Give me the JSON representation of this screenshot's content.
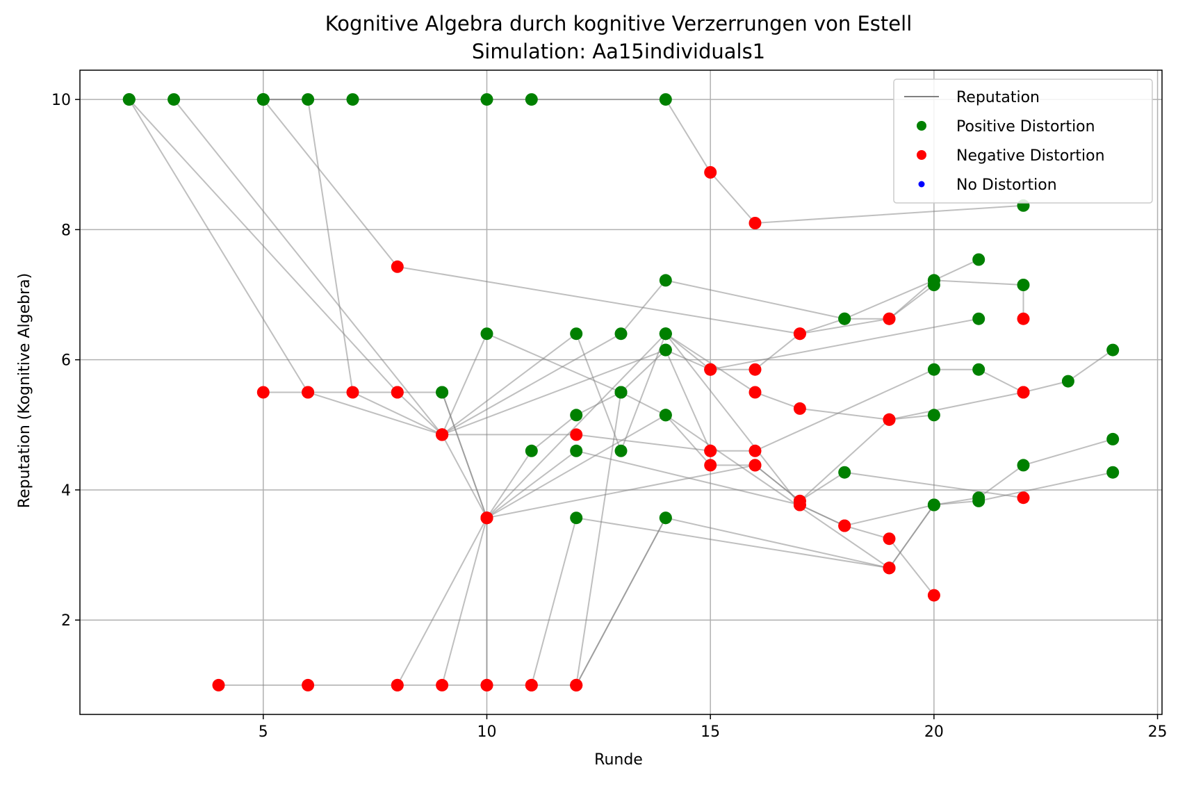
{
  "chart_data": {
    "type": "scatter",
    "title": "Kognitive Algebra durch kognitive Verzerrungen von Estell",
    "subtitle": "Simulation: Aa15individuals1",
    "xlabel": "Runde",
    "ylabel": "Reputation (Kognitive Algebra)",
    "xlim": [
      0.9,
      25.1
    ],
    "ylim": [
      0.55,
      10.45
    ],
    "xticks": [
      5,
      10,
      15,
      20,
      25
    ],
    "yticks": [
      2,
      4,
      6,
      8,
      10
    ],
    "grid": true,
    "legend_position": "top-right",
    "legend": [
      {
        "label": "Reputation",
        "kind": "line",
        "color": "#808080"
      },
      {
        "label": "Positive Distortion",
        "kind": "point",
        "color": "#008000"
      },
      {
        "label": "Negative Distortion",
        "kind": "point",
        "color": "#ff0000"
      },
      {
        "label": "No Distortion",
        "kind": "point",
        "color": "#0000ff"
      }
    ],
    "colors": {
      "positive": "#008000",
      "negative": "#ff0000",
      "none": "#0000ff",
      "line": "#808080"
    },
    "series": [
      {
        "points": [
          [
            2,
            10
          ],
          [
            6,
            5.5
          ],
          [
            8,
            5.5
          ],
          [
            9,
            4.85
          ],
          [
            10,
            3.57
          ],
          [
            11,
            4.6
          ],
          [
            12,
            5.15
          ],
          [
            13,
            5.5
          ],
          [
            14,
            6.15
          ],
          [
            15,
            4.6
          ],
          [
            16,
            4.6
          ],
          [
            20,
            5.85
          ],
          [
            21,
            5.85
          ],
          [
            22,
            5.5
          ],
          [
            23,
            5.67
          ],
          [
            24,
            6.15
          ]
        ],
        "labels": [
          "P",
          "N",
          "N",
          "N",
          "N",
          "P",
          "P",
          "P",
          "P",
          "N",
          "N",
          "P",
          "P",
          "N",
          "P",
          "P"
        ]
      },
      {
        "points": [
          [
            2,
            10
          ],
          [
            8,
            5.5
          ],
          [
            9,
            5.5
          ],
          [
            10,
            3.57
          ],
          [
            14,
            6.4
          ],
          [
            15,
            5.85
          ],
          [
            16,
            5.85
          ],
          [
            17,
            6.4
          ],
          [
            18,
            6.63
          ],
          [
            19,
            6.63
          ],
          [
            20,
            7.15
          ]
        ],
        "labels": [
          "P",
          "N",
          "P",
          "N",
          "P",
          "N",
          "N",
          "N",
          "P",
          "N",
          "P"
        ]
      },
      {
        "points": [
          [
            3,
            10
          ],
          [
            9,
            4.85
          ],
          [
            12,
            6.4
          ],
          [
            13,
            4.6
          ],
          [
            14,
            6.4
          ],
          [
            17,
            3.77
          ],
          [
            18,
            3.45
          ],
          [
            19,
            3.25
          ],
          [
            20,
            2.38
          ]
        ],
        "labels": [
          "P",
          "N",
          "P",
          "P",
          "P",
          "N",
          "N",
          "N",
          "N"
        ]
      },
      {
        "points": [
          [
            5,
            10
          ],
          [
            6,
            10
          ],
          [
            7,
            5.5
          ],
          [
            9,
            4.85
          ],
          [
            10,
            6.4
          ],
          [
            13,
            5.5
          ],
          [
            14,
            5.15
          ],
          [
            19,
            2.8
          ],
          [
            20,
            3.77
          ],
          [
            21,
            3.88
          ],
          [
            22,
            4.38
          ],
          [
            24,
            4.78
          ]
        ],
        "labels": [
          "P",
          "P",
          "N",
          "N",
          "P",
          "P",
          "P",
          "N",
          "P",
          "P",
          "P",
          "P"
        ]
      },
      {
        "points": [
          [
            5,
            10
          ],
          [
            8,
            7.43
          ],
          [
            17,
            6.4
          ],
          [
            19,
            6.63
          ],
          [
            20,
            7.22
          ],
          [
            21,
            7.54
          ]
        ],
        "labels": [
          "P",
          "N",
          "N",
          "N",
          "P",
          "P"
        ]
      },
      {
        "points": [
          [
            5,
            10
          ],
          [
            7,
            10
          ],
          [
            10,
            10
          ],
          [
            11,
            10
          ],
          [
            14,
            10
          ],
          [
            15,
            8.88
          ],
          [
            16,
            8.1
          ],
          [
            22,
            8.37
          ]
        ],
        "labels": [
          "P",
          "P",
          "P",
          "P",
          "P",
          "N",
          "N",
          "P"
        ]
      },
      {
        "points": [
          [
            9,
            4.85
          ],
          [
            13,
            6.4
          ],
          [
            14,
            7.22
          ],
          [
            18,
            6.63
          ],
          [
            20,
            7.22
          ],
          [
            22,
            7.15
          ],
          [
            22,
            6.63
          ]
        ],
        "labels": [
          "N",
          "P",
          "P",
          "P",
          "P",
          "P",
          "N"
        ]
      },
      {
        "points": [
          [
            9,
            4.85
          ],
          [
            14,
            6.15
          ],
          [
            15,
            5.85
          ],
          [
            21,
            6.63
          ]
        ],
        "labels": [
          "N",
          "P",
          "N",
          "P"
        ]
      },
      {
        "points": [
          [
            5,
            5.5
          ],
          [
            6,
            5.5
          ],
          [
            9,
            4.85
          ],
          [
            12,
            4.85
          ],
          [
            15,
            4.6
          ]
        ],
        "labels": [
          "N",
          "N",
          "N",
          "N",
          "N"
        ]
      },
      {
        "points": [
          [
            4,
            1
          ],
          [
            6,
            1
          ],
          [
            8,
            1
          ],
          [
            10,
            3.57
          ],
          [
            12,
            4.6
          ],
          [
            17,
            3.77
          ],
          [
            18,
            3.45
          ],
          [
            20,
            3.77
          ]
        ],
        "labels": [
          "N",
          "N",
          "N",
          "N",
          "P",
          "N",
          "N",
          "P"
        ]
      },
      {
        "points": [
          [
            8,
            1
          ],
          [
            10,
            1
          ],
          [
            11,
            1
          ],
          [
            12,
            1
          ],
          [
            14,
            3.57
          ],
          [
            19,
            2.8
          ]
        ],
        "labels": [
          "N",
          "N",
          "N",
          "N",
          "P",
          "N"
        ]
      },
      {
        "points": [
          [
            9,
            1
          ],
          [
            10,
            3.57
          ],
          [
            16,
            4.38
          ],
          [
            17,
            3.83
          ],
          [
            18,
            4.27
          ],
          [
            22,
            3.88
          ]
        ],
        "labels": [
          "N",
          "N",
          "N",
          "N",
          "P",
          "N"
        ]
      },
      {
        "points": [
          [
            10,
            1
          ],
          [
            10,
            3.57
          ]
        ],
        "labels": [
          "N",
          "N"
        ]
      },
      {
        "points": [
          [
            11,
            1
          ],
          [
            12,
            3.57
          ],
          [
            19,
            2.8
          ],
          [
            20,
            3.77
          ],
          [
            21,
            3.83
          ],
          [
            24,
            4.27
          ]
        ],
        "labels": [
          "N",
          "P",
          "N",
          "P",
          "P",
          "P"
        ]
      },
      {
        "points": [
          [
            12,
            1
          ],
          [
            13,
            5.5
          ]
        ],
        "labels": [
          "N",
          "P"
        ]
      },
      {
        "points": [
          [
            12,
            1
          ],
          [
            14,
            3.57
          ]
        ],
        "labels": [
          "N",
          "P"
        ]
      },
      {
        "points": [
          [
            9,
            5.5
          ],
          [
            10,
            3.57
          ],
          [
            14,
            5.15
          ],
          [
            15,
            4.38
          ],
          [
            16,
            4.38
          ],
          [
            17,
            3.83
          ],
          [
            19,
            5.08
          ],
          [
            20,
            5.15
          ]
        ],
        "labels": [
          "P",
          "N",
          "P",
          "N",
          "N",
          "N",
          "N",
          "P"
        ]
      },
      {
        "points": [
          [
            14,
            6.4
          ],
          [
            16,
            5.5
          ],
          [
            17,
            5.25
          ],
          [
            19,
            5.08
          ],
          [
            22,
            5.5
          ]
        ],
        "labels": [
          "P",
          "N",
          "N",
          "N",
          "N"
        ]
      }
    ]
  }
}
